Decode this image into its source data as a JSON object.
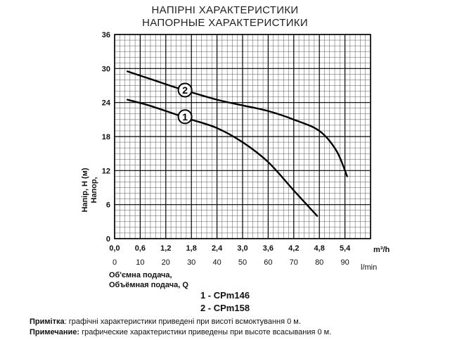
{
  "titles": {
    "line1": "НАПІРНІ ХАРАКТЕРИСТИКИ",
    "line2": "НАПОРНЫЕ ХАРАКТЕРИСТИКИ"
  },
  "chart_data": {
    "type": "line",
    "y_axis": {
      "label_lines": [
        "Напір, H (м)",
        "Напор,"
      ],
      "ticks": [
        "0",
        "6",
        "12",
        "18",
        "24",
        "30",
        "36"
      ],
      "range": [
        0,
        36
      ]
    },
    "x_axis": {
      "unit": "m³/h",
      "ticks": [
        "0,0",
        "0,6",
        "1,2",
        "1,8",
        "2,4",
        "3,0",
        "3,6",
        "4,2",
        "4,8",
        "5,4"
      ],
      "range": [
        0,
        6.0
      ]
    },
    "x_axis_secondary": {
      "unit": "l/min",
      "ticks": [
        "0",
        "10",
        "20",
        "30",
        "40",
        "50",
        "60",
        "70",
        "80",
        "90"
      ]
    },
    "x_label_lines": [
      "Об'ємна подача,",
      "Объёмная подача, Q"
    ],
    "grid": true,
    "series": [
      {
        "name": "1",
        "x": [
          0.3,
          0.8,
          1.4,
          1.8,
          2.4,
          3.0,
          3.6,
          4.2,
          4.75
        ],
        "y": [
          24.5,
          23.5,
          22.0,
          21.0,
          19.5,
          17.0,
          13.5,
          8.5,
          4.0
        ]
      },
      {
        "name": "2",
        "x": [
          0.3,
          0.9,
          1.5,
          2.4,
          3.0,
          3.6,
          4.2,
          4.8,
          5.2,
          5.45
        ],
        "y": [
          29.5,
          28.0,
          26.5,
          24.5,
          23.5,
          22.5,
          21.0,
          19.0,
          15.5,
          11.0
        ]
      }
    ]
  },
  "legend": {
    "item1": "1 - CPm146",
    "item2": "2 - CPm158"
  },
  "notes": {
    "ua_label": "Примітка",
    "ua_text": ": графічні характеристики приведені при висоті всмоктування 0 м.",
    "ru_label": "Примечание:",
    "ru_text": " графические характеристики приведены при высоте всасывания 0 м."
  }
}
